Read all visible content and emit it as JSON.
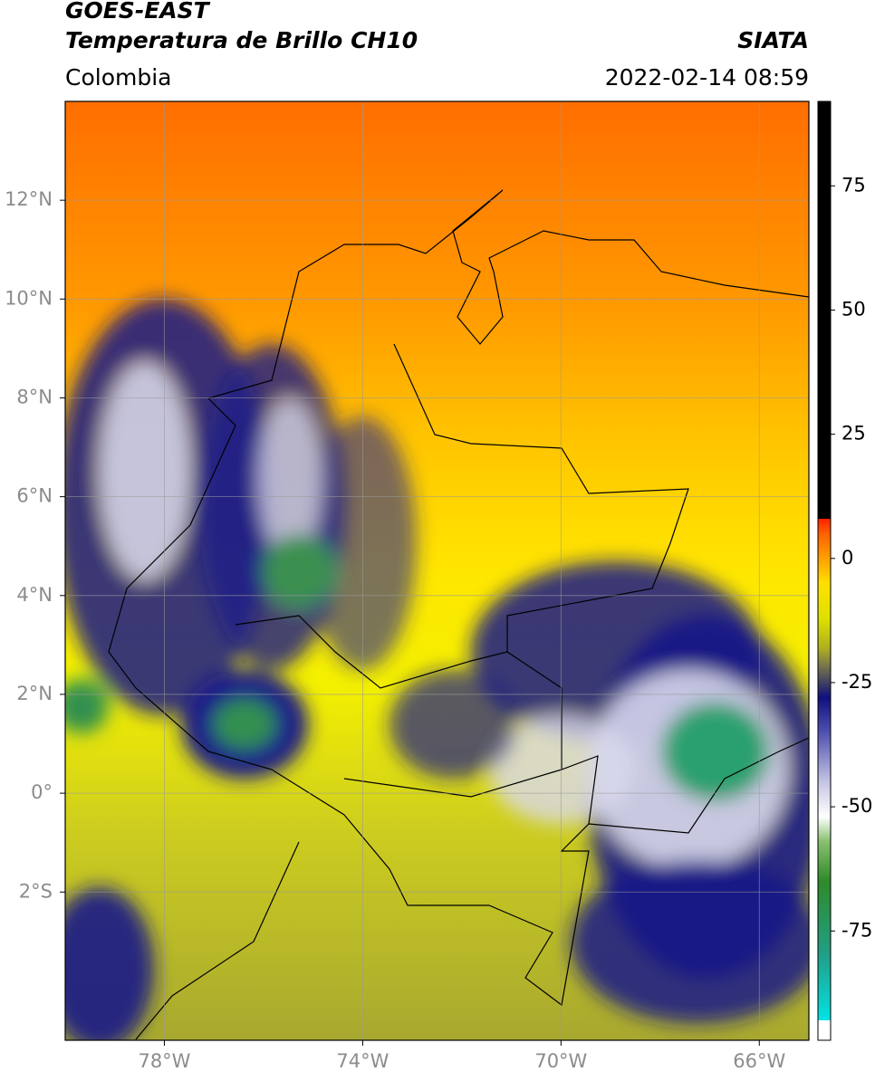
{
  "chart_data": {
    "type": "map",
    "title": "GOES-EAST",
    "subtitle": "Temperatura de Brillo CH10",
    "source": "SIATA",
    "region": "Colombia",
    "datetime": "2022-02-14 08:59",
    "xlim": [
      -80,
      -65
    ],
    "ylim": [
      -5,
      14
    ],
    "xticks": [
      {
        "value": -78,
        "label": "78°W"
      },
      {
        "value": -74,
        "label": "74°W"
      },
      {
        "value": -70,
        "label": "70°W"
      },
      {
        "value": -66,
        "label": "66°W"
      }
    ],
    "yticks": [
      {
        "value": 12,
        "label": "12°N"
      },
      {
        "value": 10,
        "label": "10°N"
      },
      {
        "value": 8,
        "label": "8°N"
      },
      {
        "value": 6,
        "label": "6°N"
      },
      {
        "value": 4,
        "label": "4°N"
      },
      {
        "value": 2,
        "label": "2°N"
      },
      {
        "value": 0,
        "label": "0°"
      },
      {
        "value": -2,
        "label": "2°S"
      }
    ],
    "grid": true,
    "colorbar": {
      "lim": [
        -97,
        92
      ],
      "ticks": [
        -75,
        -50,
        -25,
        0,
        25,
        50,
        75
      ],
      "colormap": [
        {
          "value": -97,
          "color": "#ffffff"
        },
        {
          "value": -93,
          "color": "#ffffff"
        },
        {
          "value": -93,
          "color": "#00e4e4"
        },
        {
          "value": -88,
          "color": "#10c8c0"
        },
        {
          "value": -80,
          "color": "#20a088"
        },
        {
          "value": -65,
          "color": "#2f8a2a"
        },
        {
          "value": -57,
          "color": "#88c070"
        },
        {
          "value": -52,
          "color": "#ffffff"
        },
        {
          "value": -45,
          "color": "#c4c4e4"
        },
        {
          "value": -35,
          "color": "#5050b0"
        },
        {
          "value": -28,
          "color": "#101080"
        },
        {
          "value": -25,
          "color": "#404060"
        },
        {
          "value": -22,
          "color": "#707050"
        },
        {
          "value": -18,
          "color": "#b0b020"
        },
        {
          "value": -12,
          "color": "#e0e000"
        },
        {
          "value": -5,
          "color": "#ffe000"
        },
        {
          "value": 0,
          "color": "#ffa000"
        },
        {
          "value": 5,
          "color": "#ff6000"
        },
        {
          "value": 8,
          "color": "#ff2000"
        },
        {
          "value": 8,
          "color": "#000000"
        },
        {
          "value": 92,
          "color": "#000000"
        }
      ]
    }
  }
}
